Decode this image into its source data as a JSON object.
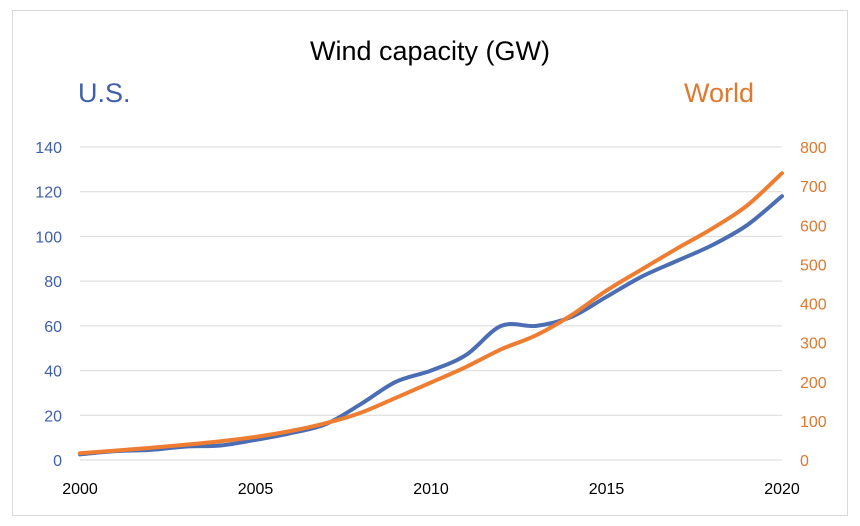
{
  "chart_data": {
    "type": "line",
    "title": "Wind capacity (GW)",
    "x": [
      2000,
      2001,
      2002,
      2003,
      2004,
      2005,
      2006,
      2007,
      2008,
      2009,
      2010,
      2011,
      2012,
      2013,
      2014,
      2015,
      2016,
      2017,
      2018,
      2019,
      2020
    ],
    "x_ticks": [
      "2000",
      "2005",
      "2010",
      "2015",
      "2020"
    ],
    "y_left_ticks": [
      "0",
      "20",
      "40",
      "60",
      "80",
      "100",
      "120",
      "140"
    ],
    "y_right_ticks": [
      "0",
      "100",
      "200",
      "300",
      "400",
      "500",
      "600",
      "700",
      "800"
    ],
    "ylim_left": [
      0,
      140
    ],
    "ylim_right": [
      0,
      800
    ],
    "xlim": [
      2000,
      2020
    ],
    "grid": "horizontal",
    "series": [
      {
        "name": "U.S.",
        "axis": "left",
        "color": "#4a6db3",
        "values": [
          2.5,
          4,
          4.5,
          6,
          6.5,
          9,
          12,
          16,
          25,
          35,
          40,
          47,
          60,
          60,
          64,
          73,
          82,
          89,
          96,
          105,
          118
        ]
      },
      {
        "name": "World",
        "axis": "right",
        "color": "#ee7d31",
        "values": [
          17,
          24,
          31,
          39,
          48,
          59,
          74,
          94,
          121,
          159,
          198,
          238,
          283,
          319,
          370,
          433,
          487,
          540,
          591,
          650,
          733
        ]
      }
    ]
  }
}
